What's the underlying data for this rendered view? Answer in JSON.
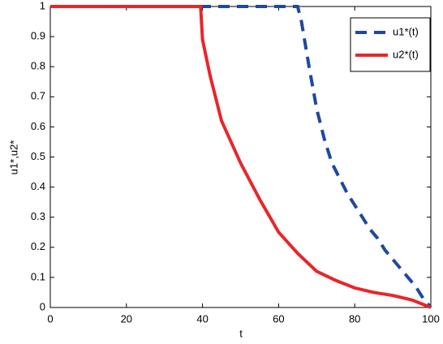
{
  "chart_data": {
    "type": "line",
    "x_label": "t",
    "y_label": "u1*,u2*",
    "xlim": [
      0,
      100
    ],
    "xticks": [
      0,
      20,
      40,
      60,
      80,
      100
    ],
    "ylim": [
      0,
      1
    ],
    "yticks": [
      0,
      0.1,
      0.2,
      0.3,
      0.4,
      0.5,
      0.6,
      0.7,
      0.8,
      0.9,
      1
    ],
    "legend": "upper right",
    "series": [
      {
        "name": "u1*(t)",
        "color": "#1f48a0",
        "dash": true,
        "x": [
          0,
          65,
          66,
          68,
          70,
          72,
          74,
          76,
          78,
          80,
          82,
          84,
          86,
          88,
          90,
          92,
          94,
          96,
          98,
          100
        ],
        "values": [
          1,
          1,
          0.95,
          0.8,
          0.66,
          0.56,
          0.48,
          0.43,
          0.38,
          0.34,
          0.3,
          0.26,
          0.23,
          0.19,
          0.16,
          0.13,
          0.1,
          0.07,
          0.03,
          0
        ]
      },
      {
        "name": "u2*(t)",
        "color": "#e8262a",
        "dash": false,
        "x": [
          0,
          39.5,
          40,
          42,
          45,
          50,
          55,
          60,
          65,
          70,
          75,
          80,
          85,
          90,
          95,
          100
        ],
        "values": [
          1,
          1,
          0.89,
          0.77,
          0.62,
          0.48,
          0.36,
          0.25,
          0.18,
          0.12,
          0.09,
          0.065,
          0.05,
          0.04,
          0.025,
          0
        ]
      }
    ]
  }
}
